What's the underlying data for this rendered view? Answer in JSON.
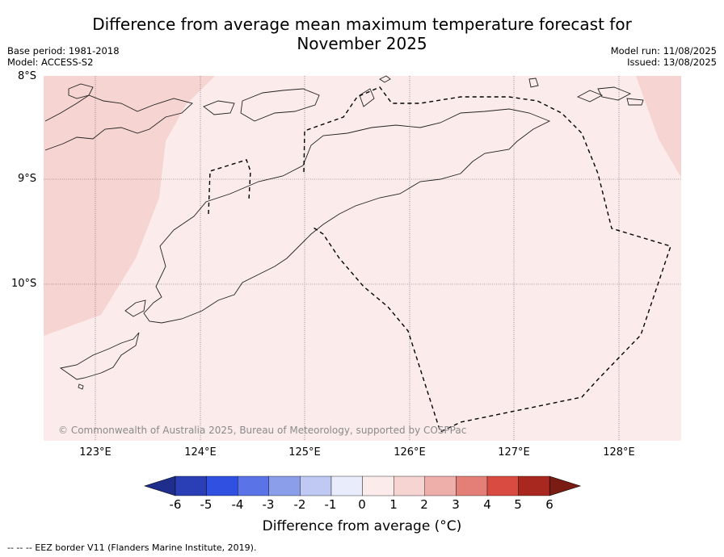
{
  "title_line1": "Difference from average mean maximum temperature forecast for",
  "title_line2": "November 2025",
  "base_period": "Base period: 1981-2018",
  "model": "Model: ACCESS-S2",
  "model_run": "Model run: 11/08/2025",
  "issued": "Issued: 13/08/2025",
  "lat_labels": [
    "8°S",
    "9°S",
    "10°S"
  ],
  "lon_labels": [
    "123°E",
    "124°E",
    "125°E",
    "126°E",
    "127°E",
    "128°E"
  ],
  "colorbar": {
    "ticks": [
      "-6",
      "-5",
      "-4",
      "-3",
      "-2",
      "-1",
      "0",
      "1",
      "2",
      "3",
      "4",
      "5",
      "6"
    ],
    "colors": [
      "#1f2e8c",
      "#2a3fb5",
      "#2f50e0",
      "#5a73e6",
      "#8a9eea",
      "#bfc9f3",
      "#e9ecfb",
      "#fbeceb",
      "#f6d4d1",
      "#eeaeaa",
      "#e47f78",
      "#d94a40",
      "#a8281f",
      "#7b1c14"
    ],
    "title": "Difference from average (°C)"
  },
  "map_colors": {
    "background_anomaly_0_1": "#fbeceb",
    "anomaly_1_2": "#f6d4d1"
  },
  "copyright": "© Commonwealth of Australia 2025, Bureau of Meteorology, supported by COSPPac",
  "footnote": "--  --  -- EEZ border V11 (Flanders Marine Institute, 2019)."
}
